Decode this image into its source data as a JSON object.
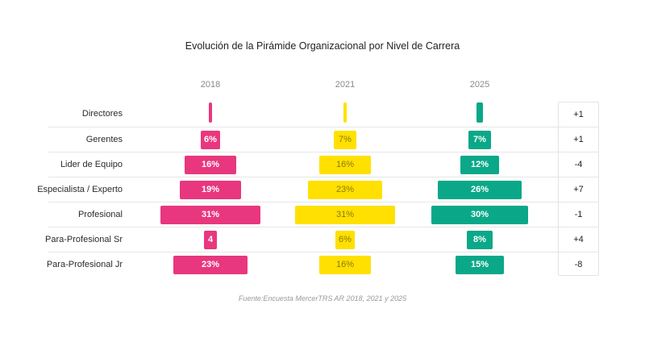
{
  "chart_data": {
    "type": "bar",
    "title": "Evolución de la Pirámide Organizacional por Nivel de Carrera",
    "subtype": "population-pyramid / centered horizontal bars",
    "categories": [
      "Directores",
      "Gerentes",
      "Lider de Equipo",
      "Especialista / Experto",
      "Profesional",
      "Para-Profesional Sr",
      "Para-Profesional Jr"
    ],
    "series": [
      {
        "name": "2018",
        "color": "#e8377e",
        "values": [
          1,
          6,
          16,
          19,
          31,
          4,
          23
        ],
        "labels": [
          "",
          "6%",
          "16%",
          "19%",
          "31%",
          "4",
          "23%"
        ]
      },
      {
        "name": "2021",
        "color": "#ffe000",
        "values": [
          1,
          7,
          16,
          23,
          31,
          6,
          16
        ],
        "labels": [
          "",
          "7%",
          "16%",
          "23%",
          "31%",
          "6%",
          "16%"
        ]
      },
      {
        "name": "2025",
        "color": "#0aa888",
        "values": [
          2,
          7,
          12,
          26,
          30,
          8,
          15
        ],
        "labels": [
          "",
          "7%",
          "12%",
          "26%",
          "30%",
          "8%",
          "15%"
        ]
      }
    ],
    "delta": [
      "+1",
      "+1",
      "-4",
      "+7",
      "-1",
      "+4",
      "-8"
    ],
    "xlabel": "",
    "ylabel": "",
    "unit": "%",
    "source": "Fuente:Encuesta MercerTRS AR 2018, 2021 y 2025"
  }
}
